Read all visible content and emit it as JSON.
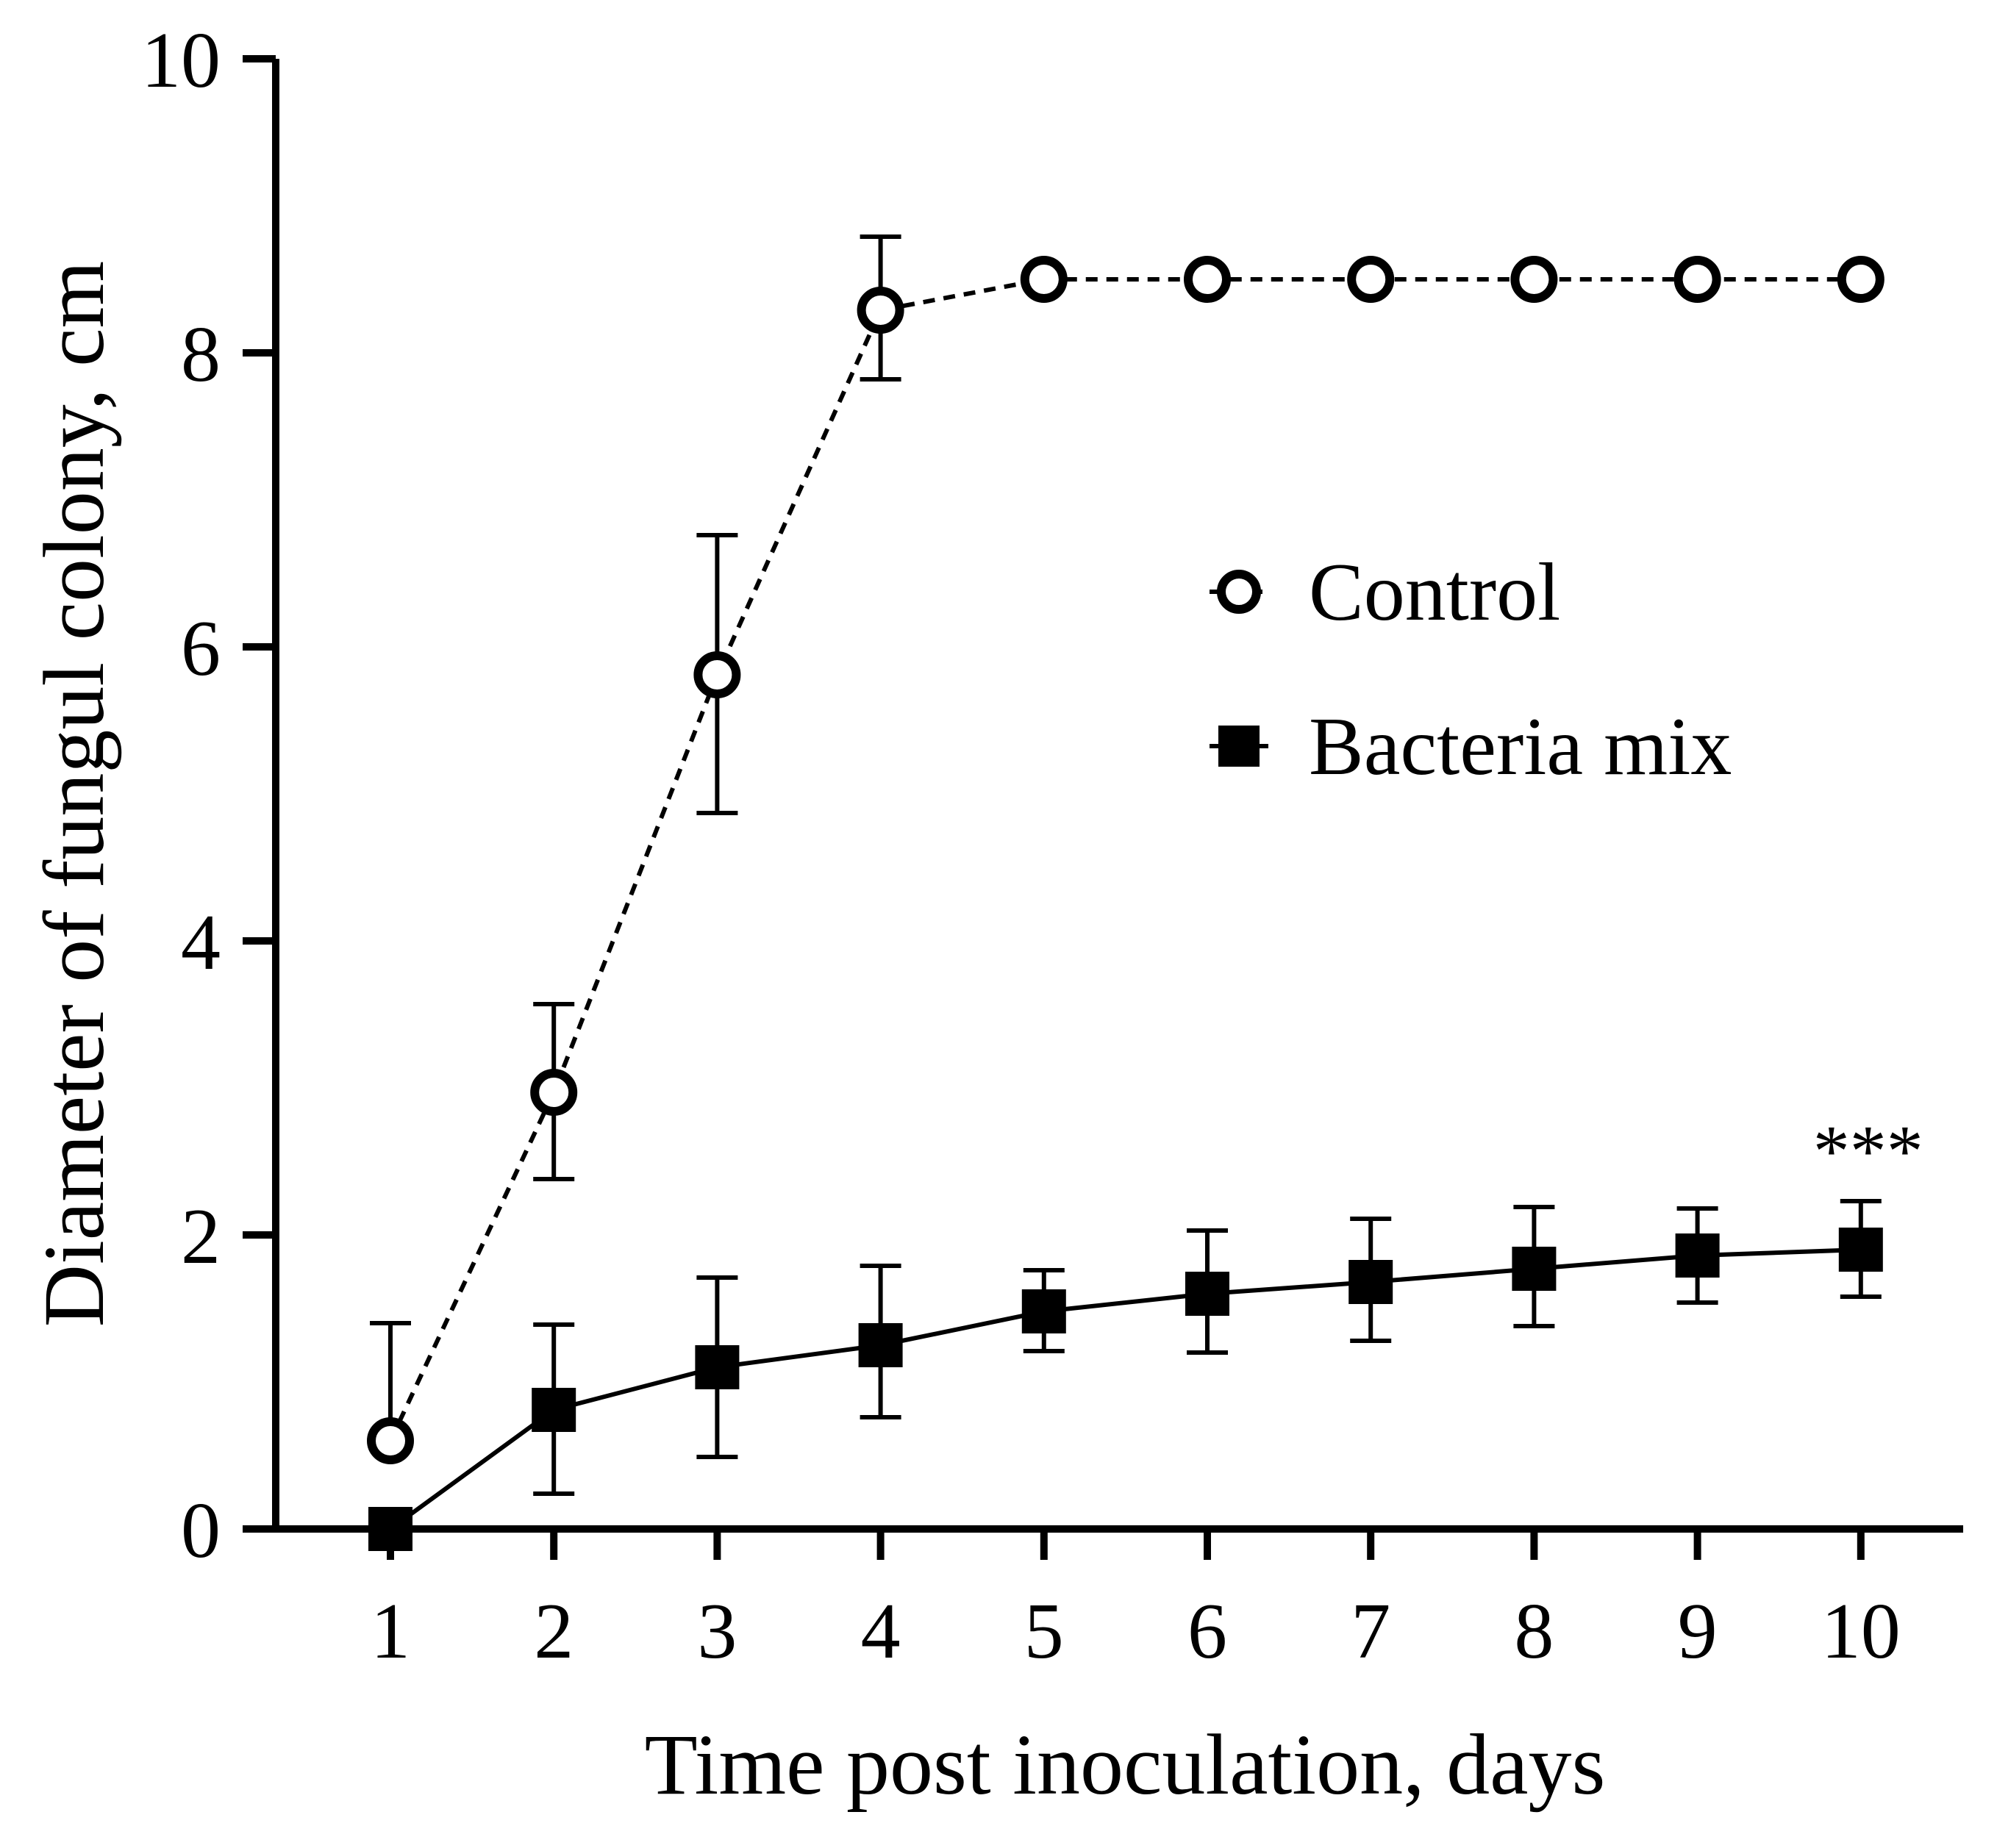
{
  "chart_data": {
    "type": "line",
    "title": "",
    "xlabel": "Time post inoculation, days",
    "ylabel": "Diameter of fungul colony, cm",
    "x": [
      1,
      2,
      3,
      4,
      5,
      6,
      7,
      8,
      9,
      10
    ],
    "x_tick_labels": [
      "1",
      "2",
      "3",
      "4",
      "5",
      "6",
      "7",
      "8",
      "9",
      "10"
    ],
    "y_ticks": [
      0,
      2,
      4,
      6,
      8,
      10
    ],
    "y_tick_labels": [
      "0",
      "2",
      "4",
      "6",
      "8",
      "10"
    ],
    "xlim": [
      0.0,
      10.6
    ],
    "ylim": [
      0,
      10
    ],
    "legend_position": "right-center",
    "series": [
      {
        "name": "Control",
        "marker": "open-circle",
        "line_style": "dashed",
        "values": [
          0.6,
          2.97,
          5.81,
          8.29,
          8.5,
          8.5,
          8.5,
          8.5,
          8.5,
          8.5
        ],
        "error_upper": [
          1.4,
          3.57,
          6.76,
          8.79,
          8.5,
          8.5,
          8.5,
          8.5,
          8.5,
          8.5
        ],
        "error_lower": [
          0.6,
          2.38,
          4.87,
          7.82,
          8.5,
          8.5,
          8.5,
          8.5,
          8.5,
          8.5
        ]
      },
      {
        "name": "Bacteria mix",
        "marker": "filled-square",
        "line_style": "solid",
        "values": [
          0.0,
          0.81,
          1.1,
          1.25,
          1.48,
          1.6,
          1.68,
          1.77,
          1.86,
          1.9
        ],
        "error_upper": [
          0.0,
          1.39,
          1.71,
          1.79,
          1.76,
          2.03,
          2.11,
          2.19,
          2.18,
          2.23
        ],
        "error_lower": [
          0.0,
          0.24,
          0.49,
          0.76,
          1.21,
          1.2,
          1.28,
          1.38,
          1.54,
          1.58
        ]
      }
    ],
    "annotations": [
      {
        "x": 10,
        "y": 2.23,
        "text": "***"
      }
    ],
    "colors": {
      "axis": "#000000",
      "series": "#000000",
      "background": "#ffffff"
    }
  }
}
